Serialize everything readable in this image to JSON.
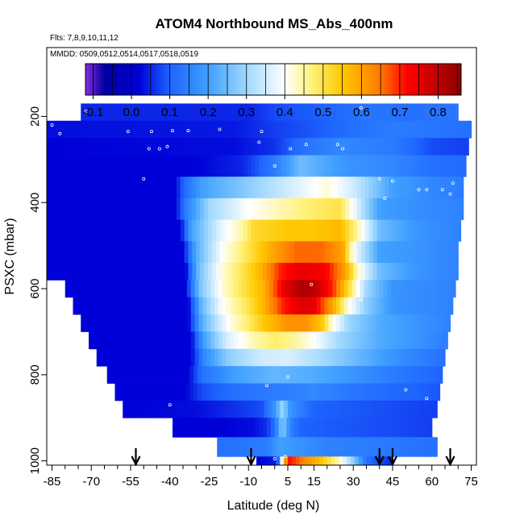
{
  "chart_data": {
    "type": "heatmap",
    "title": "ATOM4 Northbound MS_Abs_400nm",
    "flights_note": "Flts: 7,8,9,10,11,12",
    "dates_note": "MMDD: 0509,0512,0514,0517,0518,0519",
    "xlabel": "Latitude (deg N)",
    "ylabel": "PSXC (mbar)",
    "xlim": [
      -87,
      77
    ],
    "ylim": [
      1010,
      40
    ],
    "y_reversed": true,
    "x_ticks": [
      -85,
      -70,
      -55,
      -40,
      -25,
      -10,
      5,
      15,
      30,
      45,
      60,
      75
    ],
    "y_ticks": [
      200,
      400,
      600,
      800,
      1000
    ],
    "color_scale": {
      "min": -0.12,
      "max": 0.86,
      "ticks": [
        -0.1,
        0.0,
        0.1,
        0.2,
        0.3,
        0.4,
        0.5,
        0.6,
        0.7,
        0.8
      ],
      "stops": [
        {
          "v": -0.12,
          "c": "#8a2be2"
        },
        {
          "v": -0.07,
          "c": "#0000a0"
        },
        {
          "v": 0.02,
          "c": "#0000d8"
        },
        {
          "v": 0.1,
          "c": "#1e64ff"
        },
        {
          "v": 0.2,
          "c": "#3fa0ff"
        },
        {
          "v": 0.3,
          "c": "#9fd8ff"
        },
        {
          "v": 0.4,
          "c": "#ffffff"
        },
        {
          "v": 0.47,
          "c": "#fff27a"
        },
        {
          "v": 0.55,
          "c": "#ffc800"
        },
        {
          "v": 0.65,
          "c": "#ff7800"
        },
        {
          "v": 0.72,
          "c": "#ff0000"
        },
        {
          "v": 0.86,
          "c": "#8b0000"
        }
      ]
    },
    "arrows_lat": [
      -53,
      -9,
      40,
      45,
      67
    ],
    "rows": [
      {
        "p0": 170,
        "p1": 210,
        "lat0": -74,
        "lat1": 70,
        "v": [
          [
            -74,
            0.05
          ],
          [
            -10,
            0.05
          ],
          [
            0,
            0.08
          ],
          [
            20,
            0.1
          ],
          [
            35,
            0.13
          ],
          [
            50,
            0.12
          ],
          [
            70,
            0.13
          ]
        ]
      },
      {
        "p0": 210,
        "p1": 250,
        "lat0": -87,
        "lat1": 75,
        "v": [
          [
            -87,
            0.03
          ],
          [
            -15,
            0.04
          ],
          [
            0,
            0.07
          ],
          [
            15,
            0.09
          ],
          [
            30,
            0.12
          ],
          [
            45,
            0.14
          ],
          [
            60,
            0.13
          ],
          [
            75,
            0.12
          ]
        ]
      },
      {
        "p0": 250,
        "p1": 290,
        "lat0": -87,
        "lat1": 74,
        "v": [
          [
            -87,
            0.02
          ],
          [
            -15,
            0.03
          ],
          [
            0,
            0.06
          ],
          [
            10,
            0.12
          ],
          [
            25,
            0.16
          ],
          [
            45,
            0.14
          ],
          [
            60,
            0.08
          ],
          [
            74,
            0.07
          ]
        ]
      },
      {
        "p0": 290,
        "p1": 340,
        "lat0": -87,
        "lat1": 73,
        "v": [
          [
            -87,
            0.02
          ],
          [
            -30,
            0.02
          ],
          [
            -12,
            0.05
          ],
          [
            0,
            0.14
          ],
          [
            10,
            0.25
          ],
          [
            28,
            0.18
          ],
          [
            45,
            0.16
          ],
          [
            60,
            0.12
          ],
          [
            73,
            0.11
          ]
        ]
      },
      {
        "p0": 340,
        "p1": 390,
        "lat0": -87,
        "lat1": 72,
        "v": [
          [
            -87,
            0.02
          ],
          [
            -38,
            0.02
          ],
          [
            -35,
            0.1
          ],
          [
            -28,
            0.2
          ],
          [
            -10,
            0.28
          ],
          [
            5,
            0.35
          ],
          [
            20,
            0.42
          ],
          [
            30,
            0.35
          ],
          [
            45,
            0.2
          ],
          [
            60,
            0.16
          ],
          [
            72,
            0.14
          ]
        ]
      },
      {
        "p0": 390,
        "p1": 440,
        "lat0": -87,
        "lat1": 72,
        "v": [
          [
            -87,
            0.02
          ],
          [
            -38,
            0.02
          ],
          [
            -34,
            0.14
          ],
          [
            -25,
            0.3
          ],
          [
            -10,
            0.4
          ],
          [
            5,
            0.45
          ],
          [
            15,
            0.48
          ],
          [
            25,
            0.5
          ],
          [
            32,
            0.35
          ],
          [
            40,
            0.2
          ],
          [
            55,
            0.17
          ],
          [
            72,
            0.15
          ]
        ]
      },
      {
        "p0": 440,
        "p1": 490,
        "lat0": -87,
        "lat1": 71,
        "v": [
          [
            -87,
            0.02
          ],
          [
            -36,
            0.02
          ],
          [
            -32,
            0.2
          ],
          [
            -20,
            0.38
          ],
          [
            -12,
            0.45
          ],
          [
            -8,
            0.52
          ],
          [
            5,
            0.55
          ],
          [
            15,
            0.55
          ],
          [
            25,
            0.57
          ],
          [
            30,
            0.48
          ],
          [
            40,
            0.25
          ],
          [
            55,
            0.18
          ],
          [
            71,
            0.15
          ]
        ]
      },
      {
        "p0": 490,
        "p1": 540,
        "lat0": -87,
        "lat1": 70,
        "v": [
          [
            -87,
            0.02
          ],
          [
            -35,
            0.02
          ],
          [
            -30,
            0.22
          ],
          [
            -20,
            0.4
          ],
          [
            -12,
            0.48
          ],
          [
            -5,
            0.55
          ],
          [
            0,
            0.6
          ],
          [
            8,
            0.66
          ],
          [
            18,
            0.66
          ],
          [
            26,
            0.6
          ],
          [
            30,
            0.4
          ],
          [
            40,
            0.2
          ],
          [
            55,
            0.18
          ],
          [
            70,
            0.15
          ]
        ]
      },
      {
        "p0": 540,
        "p1": 580,
        "lat0": -87,
        "lat1": 70,
        "v": [
          [
            -87,
            0.02
          ],
          [
            -34,
            0.02
          ],
          [
            -29,
            0.25
          ],
          [
            -20,
            0.42
          ],
          [
            -12,
            0.5
          ],
          [
            -5,
            0.58
          ],
          [
            2,
            0.7
          ],
          [
            10,
            0.75
          ],
          [
            20,
            0.72
          ],
          [
            27,
            0.6
          ],
          [
            32,
            0.42
          ],
          [
            40,
            0.25
          ],
          [
            55,
            0.18
          ],
          [
            70,
            0.15
          ]
        ]
      },
      {
        "p0": 580,
        "p1": 620,
        "lat0": -80,
        "lat1": 69,
        "v": [
          [
            -80,
            0.02
          ],
          [
            -34,
            0.02
          ],
          [
            -29,
            0.25
          ],
          [
            -20,
            0.42
          ],
          [
            -12,
            0.5
          ],
          [
            -4,
            0.58
          ],
          [
            3,
            0.74
          ],
          [
            10,
            0.82
          ],
          [
            15,
            0.8
          ],
          [
            22,
            0.7
          ],
          [
            28,
            0.52
          ],
          [
            35,
            0.3
          ],
          [
            45,
            0.18
          ],
          [
            69,
            0.15
          ]
        ]
      },
      {
        "p0": 620,
        "p1": 660,
        "lat0": -77,
        "lat1": 68,
        "v": [
          [
            -77,
            0.02
          ],
          [
            -33,
            0.02
          ],
          [
            -28,
            0.24
          ],
          [
            -20,
            0.4
          ],
          [
            -10,
            0.5
          ],
          [
            -4,
            0.58
          ],
          [
            3,
            0.7
          ],
          [
            10,
            0.76
          ],
          [
            15,
            0.75
          ],
          [
            22,
            0.6
          ],
          [
            28,
            0.42
          ],
          [
            35,
            0.28
          ],
          [
            45,
            0.18
          ],
          [
            68,
            0.15
          ]
        ]
      },
      {
        "p0": 660,
        "p1": 700,
        "lat0": -74,
        "lat1": 67,
        "v": [
          [
            -74,
            0.02
          ],
          [
            -33,
            0.02
          ],
          [
            -28,
            0.22
          ],
          [
            -18,
            0.4
          ],
          [
            -10,
            0.48
          ],
          [
            -4,
            0.55
          ],
          [
            5,
            0.62
          ],
          [
            12,
            0.62
          ],
          [
            18,
            0.55
          ],
          [
            22,
            0.42
          ],
          [
            28,
            0.3
          ],
          [
            40,
            0.22
          ],
          [
            55,
            0.18
          ],
          [
            67,
            0.15
          ]
        ]
      },
      {
        "p0": 700,
        "p1": 740,
        "lat0": -71,
        "lat1": 66,
        "v": [
          [
            -71,
            0.02
          ],
          [
            -32,
            0.02
          ],
          [
            -27,
            0.2
          ],
          [
            -18,
            0.36
          ],
          [
            -8,
            0.44
          ],
          [
            0,
            0.48
          ],
          [
            8,
            0.45
          ],
          [
            15,
            0.4
          ],
          [
            25,
            0.3
          ],
          [
            40,
            0.22
          ],
          [
            55,
            0.18
          ],
          [
            66,
            0.14
          ]
        ]
      },
      {
        "p0": 740,
        "p1": 780,
        "lat0": -68,
        "lat1": 65,
        "v": [
          [
            -68,
            0.02
          ],
          [
            -32,
            0.02
          ],
          [
            -27,
            0.16
          ],
          [
            -18,
            0.28
          ],
          [
            -5,
            0.35
          ],
          [
            5,
            0.36
          ],
          [
            15,
            0.32
          ],
          [
            30,
            0.25
          ],
          [
            45,
            0.18
          ],
          [
            65,
            0.12
          ]
        ]
      },
      {
        "p0": 780,
        "p1": 820,
        "lat0": -64,
        "lat1": 64,
        "v": [
          [
            -64,
            0.02
          ],
          [
            -33,
            0.02
          ],
          [
            -28,
            0.12
          ],
          [
            -15,
            0.2
          ],
          [
            0,
            0.24
          ],
          [
            15,
            0.22
          ],
          [
            30,
            0.18
          ],
          [
            45,
            0.14
          ],
          [
            64,
            0.1
          ]
        ]
      },
      {
        "p0": 820,
        "p1": 860,
        "lat0": -61,
        "lat1": 63,
        "v": [
          [
            -61,
            0.02
          ],
          [
            -34,
            0.02
          ],
          [
            -28,
            0.08
          ],
          [
            -15,
            0.12
          ],
          [
            0,
            0.14
          ],
          [
            15,
            0.16
          ],
          [
            30,
            0.13
          ],
          [
            45,
            0.11
          ],
          [
            63,
            0.09
          ]
        ]
      },
      {
        "p0": 860,
        "p1": 900,
        "lat0": -58,
        "lat1": 62,
        "v": [
          [
            -58,
            0.02
          ],
          [
            -30,
            0.03
          ],
          [
            -15,
            0.06
          ],
          [
            -5,
            0.08
          ],
          [
            0,
            0.18
          ],
          [
            3,
            0.3
          ],
          [
            6,
            0.18
          ],
          [
            15,
            0.1
          ],
          [
            30,
            0.09
          ],
          [
            45,
            0.08
          ],
          [
            62,
            0.07
          ]
        ]
      },
      {
        "p0": 900,
        "p1": 945,
        "lat0": -39,
        "lat1": 60,
        "v": [
          [
            -39,
            0.02
          ],
          [
            -20,
            0.02
          ],
          [
            -8,
            0.03
          ],
          [
            -3,
            0.06
          ],
          [
            0,
            0.12
          ],
          [
            3,
            0.28
          ],
          [
            6,
            0.15
          ],
          [
            10,
            0.1
          ],
          [
            25,
            0.09
          ],
          [
            45,
            0.08
          ],
          [
            60,
            0.07
          ]
        ]
      },
      {
        "p0": 945,
        "p1": 990,
        "lat0": -22,
        "lat1": 62,
        "v": [
          [
            -22,
            0.12
          ],
          [
            -10,
            0.13
          ],
          [
            -3,
            0.14
          ],
          [
            2,
            0.2
          ],
          [
            8,
            0.18
          ],
          [
            20,
            0.15
          ],
          [
            35,
            0.14
          ],
          [
            50,
            0.13
          ],
          [
            62,
            0.12
          ]
        ]
      },
      {
        "p0": 990,
        "p1": 1010,
        "lat0": -7,
        "lat1": 45,
        "v": [
          [
            -7,
            0.02
          ],
          [
            0,
            0.04
          ],
          [
            2,
            0.15
          ],
          [
            3,
            0.45
          ],
          [
            5,
            0.72
          ],
          [
            8,
            0.68
          ],
          [
            12,
            0.62
          ],
          [
            18,
            0.55
          ],
          [
            24,
            0.45
          ],
          [
            30,
            0.28
          ],
          [
            35,
            0.12
          ],
          [
            40,
            0.08
          ],
          [
            45,
            0.05
          ]
        ]
      }
    ],
    "points": [
      [
        -85,
        220
      ],
      [
        -82,
        240
      ],
      [
        -75,
        185
      ],
      [
        -72,
        188
      ],
      [
        -56,
        235
      ],
      [
        -47,
        235
      ],
      [
        -48,
        275
      ],
      [
        -44,
        275
      ],
      [
        -41,
        270
      ],
      [
        -39,
        233
      ],
      [
        -33,
        233
      ],
      [
        -21,
        230
      ],
      [
        -5,
        235
      ],
      [
        12,
        265
      ],
      [
        26,
        275
      ],
      [
        33,
        180
      ],
      [
        42,
        390
      ],
      [
        55,
        370
      ],
      [
        58,
        370
      ],
      [
        64,
        370
      ],
      [
        67,
        380
      ],
      [
        -50,
        345
      ],
      [
        0,
        315
      ],
      [
        6,
        275
      ],
      [
        24,
        265
      ],
      [
        45,
        350
      ],
      [
        68,
        355
      ],
      [
        40,
        345
      ],
      [
        -6,
        260
      ],
      [
        14,
        590
      ],
      [
        -3,
        825
      ],
      [
        33,
        625
      ],
      [
        58,
        855
      ],
      [
        50,
        835
      ],
      [
        -40,
        870
      ],
      [
        5,
        805
      ],
      [
        0,
        995
      ],
      [
        4,
        990
      ]
    ]
  }
}
